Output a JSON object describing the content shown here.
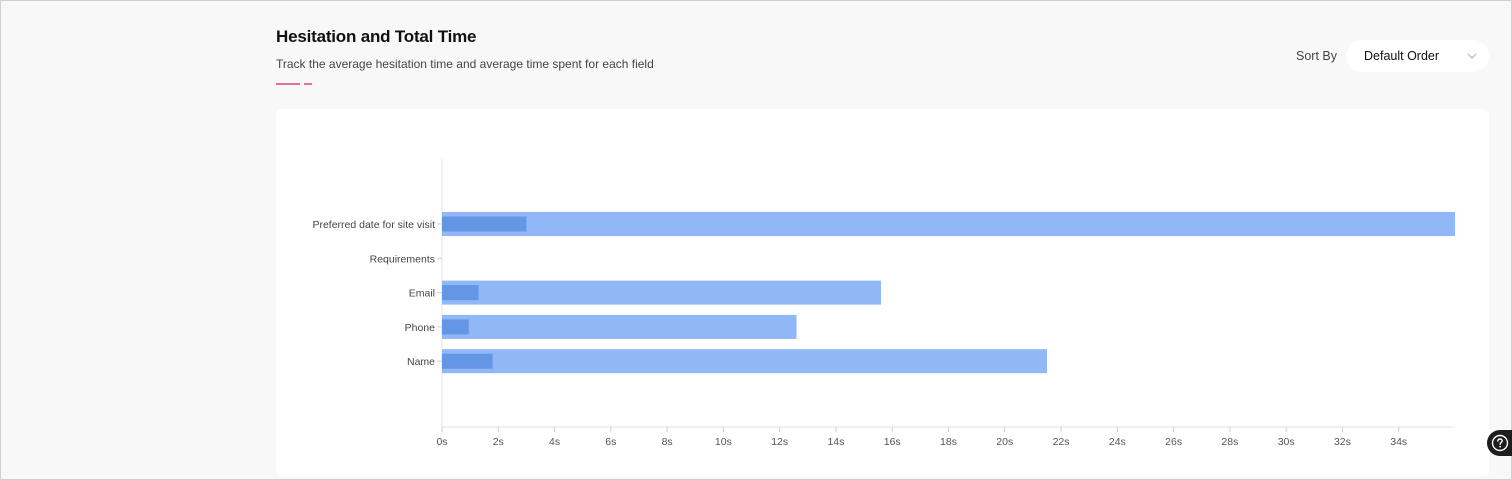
{
  "header": {
    "title": "Hesitation and Total Time",
    "subtitle": "Track the average hesitation time and average time spent for each field"
  },
  "sort": {
    "label": "Sort By",
    "selected": "Default Order"
  },
  "colors": {
    "total_bar": "#90b8f6",
    "hesitation_bar": "#6496e6",
    "accent": "#e8728a"
  },
  "icons": {
    "dropdown": "chevron-down-icon",
    "help": "help-icon"
  },
  "chart_data": {
    "type": "bar",
    "orientation": "horizontal",
    "categories": [
      "Preferred date for site visit",
      "Requirements",
      "Email",
      "Phone",
      "Name"
    ],
    "series": [
      {
        "values": [
          36,
          0,
          15.6,
          12.6,
          21.5
        ]
      },
      {
        "values": [
          3,
          0,
          1.3,
          0.95,
          1.8
        ]
      }
    ],
    "xlim": [
      0,
      36
    ],
    "xticks": [
      "0s",
      "2s",
      "4s",
      "6s",
      "8s",
      "10s",
      "12s",
      "14s",
      "16s",
      "18s",
      "20s",
      "22s",
      "24s",
      "26s",
      "28s",
      "30s",
      "32s",
      "34s"
    ],
    "grid": false
  }
}
